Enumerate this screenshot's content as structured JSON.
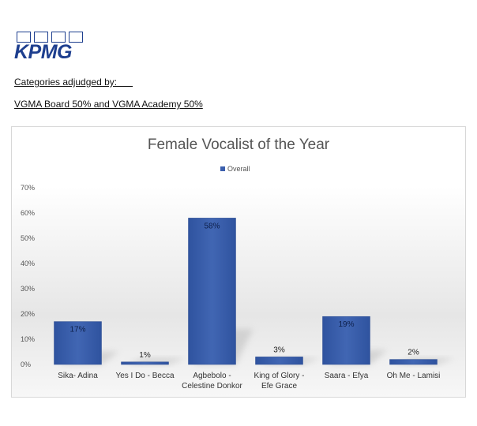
{
  "logo": {
    "text": "KPMG"
  },
  "captions": {
    "line1": "Categories adjudged by:      ",
    "line2": "VGMA Board 50% and VGMA Academy 50%"
  },
  "colors": {
    "bar": "#3b5fad",
    "bar_edge": "#2a4a8f",
    "brand": "#1e3f8f"
  },
  "chart_data": {
    "type": "bar",
    "title": "Female Vocalist of the Year",
    "categories": [
      [
        "Sika- Adina"
      ],
      [
        "Yes I Do - Becca"
      ],
      [
        "Agbebolo -",
        "Celestine Donkor"
      ],
      [
        "King of Glory -",
        "Efe Grace"
      ],
      [
        "Saara - Efya"
      ],
      [
        "Oh Me - Lamisi"
      ]
    ],
    "series": [
      {
        "name": "Overall",
        "values": [
          17,
          1,
          58,
          3,
          19,
          2
        ]
      }
    ],
    "data_labels": [
      "17%",
      "1%",
      "58%",
      "3%",
      "19%",
      "2%"
    ],
    "yticks": [
      "0%",
      "10%",
      "20%",
      "30%",
      "40%",
      "50%",
      "60%",
      "70%"
    ],
    "ylim": [
      0,
      70
    ],
    "legend_position": "top",
    "grid": false
  }
}
